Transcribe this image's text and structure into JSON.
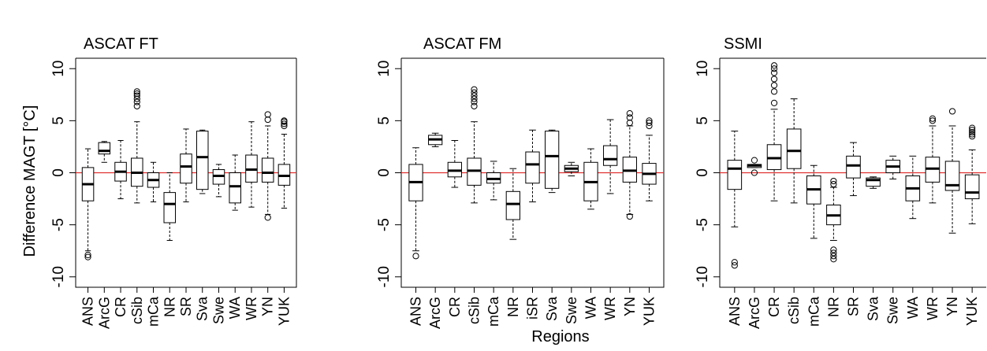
{
  "figure": {
    "ylabel": "Difference MAGT [°C]",
    "xlabel": "Regions"
  },
  "chart_data": [
    {
      "type": "box",
      "title": "ASCAT FT",
      "ylabel": "Difference MAGT [°C]",
      "ylim": [
        -11,
        11
      ],
      "yticks": [
        -10,
        -5,
        0,
        5,
        10
      ],
      "reference_line": {
        "y": 0,
        "color": "#e03030"
      },
      "categories": [
        "ANS",
        "ArcG",
        "CR",
        "cSib",
        "mCa",
        "NR",
        "SR",
        "Sva",
        "Swe",
        "WA",
        "WR",
        "YN",
        "YUK"
      ],
      "boxes": [
        {
          "min": -7.5,
          "q1": -2.7,
          "median": -1.1,
          "q3": 0.5,
          "max": 2.3,
          "outliers": [
            -7.9,
            -8.1
          ]
        },
        {
          "min": 1.0,
          "q1": 1.8,
          "median": 2.1,
          "q3": 2.9,
          "max": 3.0,
          "outliers": []
        },
        {
          "min": -2.5,
          "q1": -0.8,
          "median": 0.1,
          "q3": 1.0,
          "max": 3.1,
          "outliers": []
        },
        {
          "min": -2.9,
          "q1": -1.3,
          "median": 0.0,
          "q3": 1.4,
          "max": 4.9,
          "outliers": [
            6.4,
            6.8,
            7.1,
            7.4,
            7.6,
            7.8
          ]
        },
        {
          "min": -2.8,
          "q1": -1.4,
          "median": -0.7,
          "q3": 0.0,
          "max": 1.0,
          "outliers": []
        },
        {
          "min": -6.5,
          "q1": -4.8,
          "median": -3.0,
          "q3": -1.9,
          "max": 0.0,
          "outliers": []
        },
        {
          "min": -2.8,
          "q1": -1.0,
          "median": 0.6,
          "q3": 1.8,
          "max": 4.2,
          "outliers": []
        },
        {
          "min": -2.0,
          "q1": -1.6,
          "median": 1.5,
          "q3": 4.0,
          "max": 4.1,
          "outliers": []
        },
        {
          "min": -2.3,
          "q1": -1.1,
          "median": -0.3,
          "q3": 0.3,
          "max": 0.8,
          "outliers": []
        },
        {
          "min": -3.6,
          "q1": -2.9,
          "median": -1.3,
          "q3": 0.0,
          "max": 1.7,
          "outliers": []
        },
        {
          "min": -3.3,
          "q1": -0.9,
          "median": 0.3,
          "q3": 1.7,
          "max": 4.9,
          "outliers": []
        },
        {
          "min": -4.0,
          "q1": -0.9,
          "median": 0.0,
          "q3": 1.4,
          "max": 4.5,
          "outliers": [
            -4.3,
            5.1,
            5.6
          ]
        },
        {
          "min": -3.4,
          "q1": -1.2,
          "median": -0.3,
          "q3": 0.8,
          "max": 3.7,
          "outliers": [
            4.5,
            4.7,
            4.9,
            5.0
          ]
        }
      ]
    },
    {
      "type": "box",
      "title": "ASCAT FM",
      "ylabel": "",
      "ylim": [
        -11,
        11
      ],
      "yticks": [
        -10,
        -5,
        0,
        5,
        10
      ],
      "reference_line": {
        "y": 0,
        "color": "#e03030"
      },
      "categories": [
        "ANS",
        "ArcG",
        "CR",
        "cSib",
        "mCa",
        "NR",
        "iSR",
        "Sva",
        "Swe",
        "WA",
        "WR",
        "YN",
        "YUK"
      ],
      "boxes": [
        {
          "min": -7.5,
          "q1": -2.7,
          "median": -0.9,
          "q3": 0.8,
          "max": 2.4,
          "outliers": [
            -8.0
          ]
        },
        {
          "min": 2.5,
          "q1": 2.7,
          "median": 3.2,
          "q3": 3.6,
          "max": 3.8,
          "outliers": []
        },
        {
          "min": -1.4,
          "q1": -0.4,
          "median": 0.2,
          "q3": 1.0,
          "max": 3.1,
          "outliers": []
        },
        {
          "min": -2.9,
          "q1": -1.2,
          "median": 0.2,
          "q3": 1.4,
          "max": 4.9,
          "outliers": [
            6.4,
            6.8,
            7.1,
            7.4,
            7.7,
            8.0
          ]
        },
        {
          "min": -2.6,
          "q1": -1.0,
          "median": -0.6,
          "q3": 0.0,
          "max": 1.1,
          "outliers": []
        },
        {
          "min": -6.4,
          "q1": -4.5,
          "median": -3.0,
          "q3": -1.8,
          "max": 0.4,
          "outliers": []
        },
        {
          "min": -2.8,
          "q1": -1.0,
          "median": 0.8,
          "q3": 2.0,
          "max": 4.1,
          "outliers": []
        },
        {
          "min": -1.9,
          "q1": -1.5,
          "median": 1.6,
          "q3": 4.0,
          "max": 4.1,
          "outliers": []
        },
        {
          "min": -0.3,
          "q1": 0.1,
          "median": 0.4,
          "q3": 0.7,
          "max": 1.0,
          "outliers": []
        },
        {
          "min": -3.5,
          "q1": -2.7,
          "median": -0.9,
          "q3": 1.0,
          "max": 2.3,
          "outliers": []
        },
        {
          "min": -2.0,
          "q1": 0.7,
          "median": 1.3,
          "q3": 2.6,
          "max": 5.1,
          "outliers": []
        },
        {
          "min": -4.0,
          "q1": -0.9,
          "median": 0.2,
          "q3": 1.5,
          "max": 4.5,
          "outliers": [
            -4.2,
            4.8,
            5.3,
            5.7
          ]
        },
        {
          "min": -2.7,
          "q1": -1.1,
          "median": -0.1,
          "q3": 0.9,
          "max": 3.6,
          "outliers": [
            4.5,
            4.8,
            5.0
          ]
        }
      ]
    },
    {
      "type": "box",
      "title": "SSMI",
      "ylabel": "",
      "ylim": [
        -11,
        11
      ],
      "yticks": [
        -10,
        -5,
        0,
        5,
        10
      ],
      "reference_line": {
        "y": 0,
        "color": "#e03030"
      },
      "categories": [
        "ANS",
        "ArcG",
        "CR",
        "cSib",
        "mCa",
        "NR",
        "SR",
        "Sva",
        "Swe",
        "WA",
        "WR",
        "YN",
        "YUK"
      ],
      "boxes": [
        {
          "min": -5.2,
          "q1": -1.6,
          "median": 0.4,
          "q3": 1.2,
          "max": 4.0,
          "outliers": [
            -8.6,
            -8.9
          ]
        },
        {
          "min": 0.5,
          "q1": 0.5,
          "median": 0.7,
          "q3": 0.8,
          "max": 0.8,
          "outliers": [
            0.0,
            1.2
          ]
        },
        {
          "min": -2.7,
          "q1": 0.3,
          "median": 1.4,
          "q3": 2.7,
          "max": 6.1,
          "outliers": [
            6.7,
            7.8,
            8.4,
            9.0,
            9.6,
            10.0,
            10.3
          ]
        },
        {
          "min": -2.9,
          "q1": 0.4,
          "median": 2.1,
          "q3": 4.2,
          "max": 7.1,
          "outliers": []
        },
        {
          "min": -6.3,
          "q1": -3.0,
          "median": -1.6,
          "q3": -0.3,
          "max": 0.7,
          "outliers": []
        },
        {
          "min": -6.5,
          "q1": -5.0,
          "median": -4.1,
          "q3": -3.1,
          "max": -1.4,
          "outliers": [
            -0.8,
            -1.1,
            -7.4,
            -7.7,
            -8.0,
            -8.3
          ]
        },
        {
          "min": -2.2,
          "q1": -0.5,
          "median": 0.7,
          "q3": 1.6,
          "max": 2.9,
          "outliers": []
        },
        {
          "min": -1.5,
          "q1": -1.3,
          "median": -0.7,
          "q3": -0.5,
          "max": -0.4,
          "outliers": []
        },
        {
          "min": -0.6,
          "q1": 0.0,
          "median": 0.6,
          "q3": 1.2,
          "max": 1.6,
          "outliers": []
        },
        {
          "min": -4.4,
          "q1": -2.7,
          "median": -1.5,
          "q3": -0.3,
          "max": 1.6,
          "outliers": []
        },
        {
          "min": -2.9,
          "q1": -0.9,
          "median": 0.4,
          "q3": 1.5,
          "max": 4.5,
          "outliers": [
            5.0,
            5.2
          ]
        },
        {
          "min": -5.8,
          "q1": -1.7,
          "median": -1.2,
          "q3": 1.1,
          "max": 4.5,
          "outliers": [
            5.9
          ]
        },
        {
          "min": -4.9,
          "q1": -2.5,
          "median": -1.9,
          "q3": -0.2,
          "max": 2.2,
          "outliers": [
            3.5,
            3.7,
            3.9,
            4.1,
            4.3
          ]
        }
      ]
    }
  ]
}
